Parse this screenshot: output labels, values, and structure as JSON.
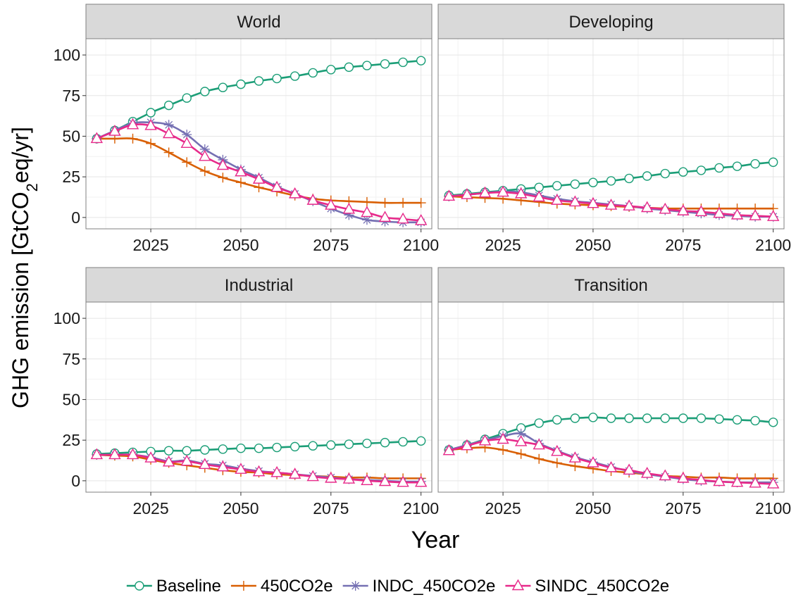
{
  "chart_data": {
    "type": "line",
    "xlabel": "Year",
    "ylabel": "GHG emission [GtCO2eq/yr]",
    "ylabel_parts": {
      "before": "GHG emission [GtCO",
      "sub": "2",
      "after": "eq/yr]"
    },
    "xlim": [
      2007,
      2103
    ],
    "ylim": [
      -7,
      110
    ],
    "x_ticks": [
      2025,
      2050,
      2075,
      2100
    ],
    "y_ticks": [
      0,
      25,
      50,
      75,
      100
    ],
    "grid": true,
    "legend_position": "bottom",
    "x": [
      2010,
      2015,
      2020,
      2025,
      2030,
      2035,
      2040,
      2045,
      2050,
      2055,
      2060,
      2065,
      2070,
      2075,
      2080,
      2085,
      2090,
      2095,
      2100
    ],
    "series_styles": [
      {
        "name": "Baseline",
        "color": "#1b9e77",
        "marker": "circle"
      },
      {
        "name": "450CO2e",
        "color": "#d95f02",
        "marker": "plus"
      },
      {
        "name": "INDC_450CO2e",
        "color": "#7570b3",
        "marker": "asterisk"
      },
      {
        "name": "SINDC_450CO2e",
        "color": "#e7298a",
        "marker": "triangle"
      }
    ],
    "panels": [
      {
        "title": "World",
        "series": [
          {
            "name": "Baseline",
            "values": [
              48.5,
              53.5,
              59,
              64.5,
              69,
              73.5,
              77.5,
              80,
              82,
              84,
              85.5,
              87,
              89,
              91,
              92.5,
              93.5,
              94.5,
              95.5,
              96.5
            ]
          },
          {
            "name": "450CO2e",
            "values": [
              48.5,
              48.5,
              48.5,
              45.5,
              40,
              34,
              28.5,
              24.5,
              21.5,
              18.5,
              16,
              13.5,
              11.5,
              10.5,
              10,
              9.5,
              9,
              9,
              9
            ]
          },
          {
            "name": "INDC_450CO2e",
            "values": [
              48.5,
              53.5,
              58,
              58.5,
              57,
              51,
              42,
              35.5,
              29.5,
              24.5,
              19,
              14.5,
              10,
              5.5,
              1.5,
              -1.5,
              -2.5,
              -3,
              -3
            ]
          },
          {
            "name": "SINDC_450CO2e",
            "values": [
              48.5,
              53,
              57,
              56.5,
              51.5,
              45.5,
              37.5,
              32,
              28,
              23.5,
              18.5,
              14.5,
              10.5,
              7.5,
              5,
              3,
              0,
              -1,
              -2
            ]
          }
        ]
      },
      {
        "title": "Developing",
        "series": [
          {
            "name": "Baseline",
            "values": [
              13.5,
              14.5,
              15.5,
              16.5,
              17.5,
              18.5,
              19.5,
              20.5,
              21.5,
              22.5,
              24,
              25.5,
              27,
              28,
              29,
              30.5,
              31.5,
              33,
              34
            ]
          },
          {
            "name": "450CO2e",
            "values": [
              13,
              12.5,
              12,
              11.5,
              10.5,
              9.5,
              8.5,
              8,
              7.5,
              7,
              6.5,
              6,
              5.5,
              5.5,
              5.5,
              5.5,
              5.5,
              5.5,
              5.5
            ]
          },
          {
            "name": "INDC_450CO2e",
            "values": [
              13,
              14,
              15,
              16,
              15.5,
              13.5,
              11.5,
              10,
              9,
              8,
              7,
              5.5,
              4.5,
              3.5,
              2.5,
              1.5,
              1,
              0.5,
              0.5
            ]
          },
          {
            "name": "SINDC_450CO2e",
            "values": [
              13,
              14,
              15,
              15.5,
              14.5,
              12.5,
              10.5,
              9.5,
              8.5,
              7.5,
              7,
              6,
              5,
              4,
              3.5,
              2.5,
              1.5,
              1,
              0.5
            ]
          }
        ]
      },
      {
        "title": "Industrial",
        "series": [
          {
            "name": "Baseline",
            "values": [
              16.5,
              17,
              17.5,
              18,
              18.5,
              18.5,
              19,
              19.5,
              20,
              20,
              20.5,
              21,
              21.5,
              22,
              22.5,
              23,
              23.5,
              24,
              24.5
            ]
          },
          {
            "name": "450CO2e",
            "values": [
              16,
              15.5,
              15,
              13,
              11,
              9.5,
              8,
              6.5,
              5.5,
              5,
              4,
              3.5,
              3,
              2.5,
              2,
              2,
              1.5,
              1.5,
              1.5
            ]
          },
          {
            "name": "INDC_450CO2e",
            "values": [
              16,
              16,
              16,
              14.5,
              12,
              12.5,
              10.5,
              9.5,
              7.5,
              6,
              5,
              4,
              3,
              2,
              1,
              0.5,
              0,
              -0.5,
              -0.5
            ]
          },
          {
            "name": "SINDC_450CO2e",
            "values": [
              16,
              16,
              16,
              14,
              11.5,
              12,
              10,
              8.5,
              7,
              5.5,
              5,
              4,
              2.5,
              1.5,
              1,
              0,
              -0.5,
              -1,
              -1
            ]
          }
        ]
      },
      {
        "title": "Transition",
        "series": [
          {
            "name": "Baseline",
            "values": [
              19,
              22,
              25.5,
              29,
              32.5,
              35.5,
              37.5,
              38.5,
              39,
              38.5,
              38.5,
              38.5,
              38.5,
              38.5,
              38.5,
              38,
              37.5,
              37,
              36
            ]
          },
          {
            "name": "450CO2e",
            "values": [
              19,
              20,
              20.5,
              19,
              16.5,
              13.5,
              11,
              9,
              7.5,
              6,
              5,
              4,
              3,
              2.5,
              2,
              2,
              1.5,
              1.5,
              1.5
            ]
          },
          {
            "name": "INDC_450CO2e",
            "values": [
              19,
              22,
              25,
              27.5,
              29,
              23,
              18.5,
              14.5,
              11.5,
              8.5,
              6,
              4,
              2.5,
              1,
              0,
              -0.5,
              -1,
              -1,
              -1
            ]
          },
          {
            "name": "SINDC_450CO2e",
            "values": [
              18.5,
              21.5,
              24.5,
              25.5,
              24,
              22,
              18,
              14,
              11,
              8,
              6.5,
              4.5,
              3,
              1.5,
              0.5,
              -0.5,
              -1,
              -1.5,
              -2
            ]
          }
        ]
      }
    ]
  }
}
